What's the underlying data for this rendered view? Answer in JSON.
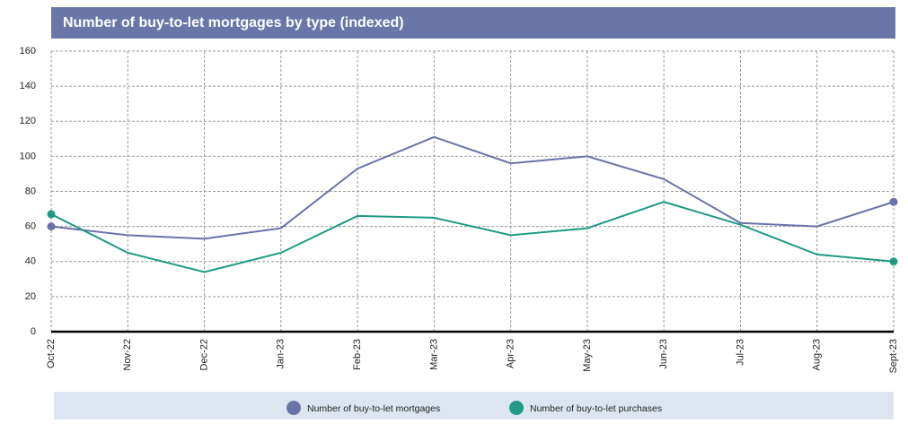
{
  "chart_data": {
    "type": "line",
    "title": "Number of buy-to-let mortgages by type (indexed)",
    "categories": [
      "Oct-22",
      "Nov-22",
      "Dec-22",
      "Jan-23",
      "Feb-23",
      "Mar-23",
      "Apr-23",
      "May-23",
      "Jun-23",
      "Jul-23",
      "Aug-23",
      "Sept-23"
    ],
    "series": [
      {
        "name": "Number of buy-to-let mortgages",
        "color": "#6a73a8",
        "values": [
          60,
          55,
          53,
          59,
          93,
          111,
          96,
          100,
          87,
          62,
          60,
          74
        ]
      },
      {
        "name": "Number of buy-to-let purchases",
        "color": "#1f9a85",
        "values": [
          67,
          45,
          34,
          45,
          66,
          65,
          55,
          59,
          74,
          61,
          44,
          40
        ]
      }
    ],
    "ylim": [
      0,
      160
    ],
    "yticks": [
      0,
      20,
      40,
      60,
      80,
      100,
      120,
      140,
      160
    ],
    "grid": true,
    "legend": "bottom"
  }
}
